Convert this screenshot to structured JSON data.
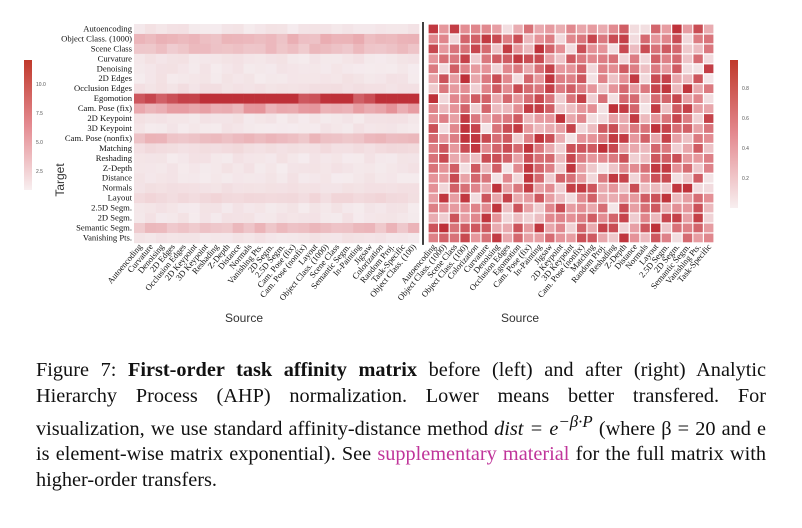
{
  "figure": {
    "number_label": "Figure 7:",
    "title": "First-order task affinity matrix",
    "text_1": " before (left) and after (right) Analytic Hierarchy Process (AHP) normalization.  Lower means better transfered.  For visualization, we use standard affinity-distance method ",
    "math_1": "dist = e",
    "math_sup": "−β·P",
    "text_2": " (where β = 20 and e is element-wise matrix exponential). See ",
    "link": "supplementary material",
    "text_3": " for the full matrix with higher-order transfers."
  },
  "chart_data": [
    {
      "type": "heatmap",
      "title": "",
      "xlabel": "Source",
      "ylabel": "Target",
      "colorbar_ticks": [
        "10.0",
        "7.5",
        "5.0",
        "2.5"
      ],
      "y_categories": [
        "Autoencoding",
        "Object Class. (1000)",
        "Scene Class",
        "Curvature",
        "Denoising",
        "2D Edges",
        "Occlusion Edges",
        "Egomotion",
        "Cam. Pose (fix)",
        "2D Keypoint",
        "3D Keypoint",
        "Cam. Pose (nonfix)",
        "Matching",
        "Reshading",
        "Z-Depth",
        "Distance",
        "Normals",
        "Layout",
        "2.5D Segm.",
        "2D Segm.",
        "Semantic Segm.",
        "Vanishing Pts."
      ],
      "x_categories": [
        "Autoencoding",
        "Curvature",
        "Denoising",
        "2D Edges",
        "Occlusion Edges",
        "2D Keypoint",
        "3D Keypoint",
        "Reshading",
        "Z-Depth",
        "Distance",
        "Normals",
        "Vanishing Pts.",
        "2D Segm.",
        "2.5D Segm.",
        "Cam. Pose (fix)",
        "Cam. Pose (nonfix)",
        "Layout",
        "Object Class. (1000)",
        "Scene Class",
        "Semantic Segm.",
        "In-Painting",
        "Jigsaw",
        "Colorization",
        "Random Proj.",
        "Task-Specific",
        "Object Class. (100)"
      ],
      "row_values": [
        0.4,
        3.0,
        2.5,
        0.3,
        0.4,
        0.5,
        0.8,
        10.0,
        4.0,
        0.3,
        0.4,
        2.6,
        1.0,
        0.4,
        0.5,
        0.4,
        0.8,
        1.2,
        0.5,
        0.6,
        2.6,
        0.5
      ]
    },
    {
      "type": "heatmap",
      "title": "",
      "xlabel": "Source",
      "ylabel": "",
      "colorbar_ticks": [
        "0.8",
        "0.6",
        "0.4",
        "0.2"
      ],
      "y_categories": [
        "Autoencoding",
        "Object Class. (1000)",
        "Scene Class",
        "Curvature",
        "Denoising",
        "2D Edges",
        "Occlusion Edges",
        "Egomotion",
        "Cam. Pose (fix)",
        "2D Keypoint",
        "3D Keypoint",
        "Cam. Pose (nonfix)",
        "Matching",
        "Reshading",
        "Z-Depth",
        "Distance",
        "Normals",
        "Layout",
        "2.5D Segm.",
        "2D Segm.",
        "Semantic Segm.",
        "Vanishing Pts."
      ],
      "x_categories": [
        "Autoencoding",
        "Object Class. (1000)",
        "Scene Class",
        "Object Class. (100)",
        "Colorization",
        "Curvature",
        "Denoising",
        "Occlusion Edges",
        "Egomotion",
        "Cam. Pose (fix)",
        "In-Painting",
        "Jigsaw",
        "2D Keypoint",
        "3D Keypoint",
        "Cam. Pose (nonfix)",
        "Matching",
        "Random Proj.",
        "Reshading",
        "Z-Depth",
        "Distance",
        "Normals",
        "Layout",
        "2.5D Segm.",
        "2D Segm.",
        "Semantic Segm.",
        "Vanishing Pts.",
        "Task-Specific"
      ]
    }
  ]
}
